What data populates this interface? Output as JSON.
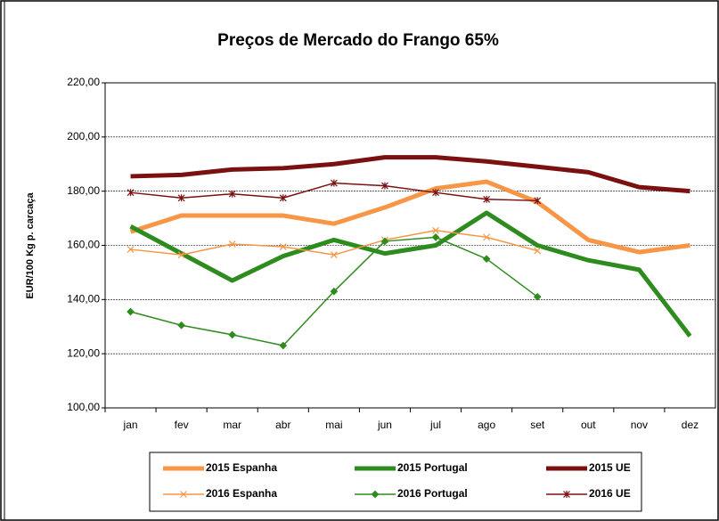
{
  "chart_data": {
    "type": "line",
    "title": "Preços de Mercado do Frango 65%",
    "y_label": "EUR/100 Kg p. carcaça",
    "categories": [
      "jan",
      "fev",
      "mar",
      "abr",
      "mai",
      "jun",
      "jul",
      "ago",
      "set",
      "out",
      "nov",
      "dez"
    ],
    "series": [
      {
        "name": "2015 Espanha",
        "color": "#f79646",
        "width": 5,
        "marker": "none",
        "values": [
          165,
          171,
          171,
          171,
          168,
          174,
          181,
          183.5,
          176,
          162,
          157.5,
          160
        ]
      },
      {
        "name": "2015 Portugal",
        "color": "#2e8b1e",
        "width": 5,
        "marker": "none",
        "values": [
          167,
          157,
          147,
          156,
          162,
          157,
          160,
          172,
          160,
          154.5,
          151,
          126.5
        ]
      },
      {
        "name": "2015 UE",
        "color": "#7b1010",
        "width": 5,
        "marker": "none",
        "values": [
          185.5,
          186,
          188,
          188.5,
          190,
          192.5,
          192.5,
          191,
          189,
          187,
          181.5,
          180
        ]
      },
      {
        "name": "2016 Espanha",
        "color": "#f79646",
        "width": 1.5,
        "marker": "x",
        "values": [
          158.5,
          156.5,
          160.5,
          159.5,
          156.5,
          162,
          165.5,
          163,
          158,
          null,
          null,
          null
        ]
      },
      {
        "name": "2016 Portugal",
        "color": "#2e8b1e",
        "width": 1.5,
        "marker": "diamond",
        "values": [
          135.5,
          130.5,
          127,
          123,
          143,
          161.5,
          163,
          155,
          141,
          null,
          null,
          null
        ]
      },
      {
        "name": "2016 UE",
        "color": "#7b1010",
        "width": 1.5,
        "marker": "star",
        "values": [
          179.5,
          177.5,
          179,
          177.5,
          183,
          182,
          179.5,
          177,
          176.5,
          null,
          null,
          null
        ]
      }
    ],
    "ylim": [
      100,
      220
    ],
    "yticks": [
      {
        "value": 100,
        "label": "100,00"
      },
      {
        "value": 120,
        "label": "120,00"
      },
      {
        "value": 140,
        "label": "140,00"
      },
      {
        "value": 160,
        "label": "160,00"
      },
      {
        "value": 180,
        "label": "180,00"
      },
      {
        "value": 200,
        "label": "200,00"
      },
      {
        "value": 220,
        "label": "220,00"
      }
    ],
    "grid": true
  }
}
